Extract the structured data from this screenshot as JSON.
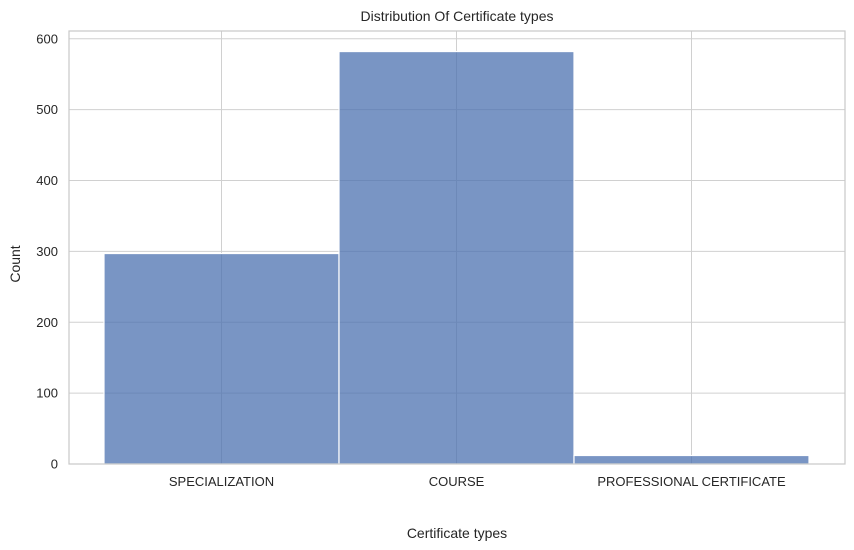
{
  "chart_data": {
    "type": "bar",
    "title": "Distribution Of Certificate types",
    "xlabel": "Certificate types",
    "ylabel": "Count",
    "categories": [
      "SPECIALIZATION",
      "COURSE",
      "PROFESSIONAL CERTIFICATE"
    ],
    "values": [
      297,
      582,
      12
    ],
    "ylim": [
      0,
      611
    ],
    "yticks": [
      0,
      100,
      200,
      300,
      400,
      500,
      600
    ],
    "grid": true,
    "bar_color": "#4c72b0",
    "bar_opacity": 0.75,
    "legend": "none"
  }
}
